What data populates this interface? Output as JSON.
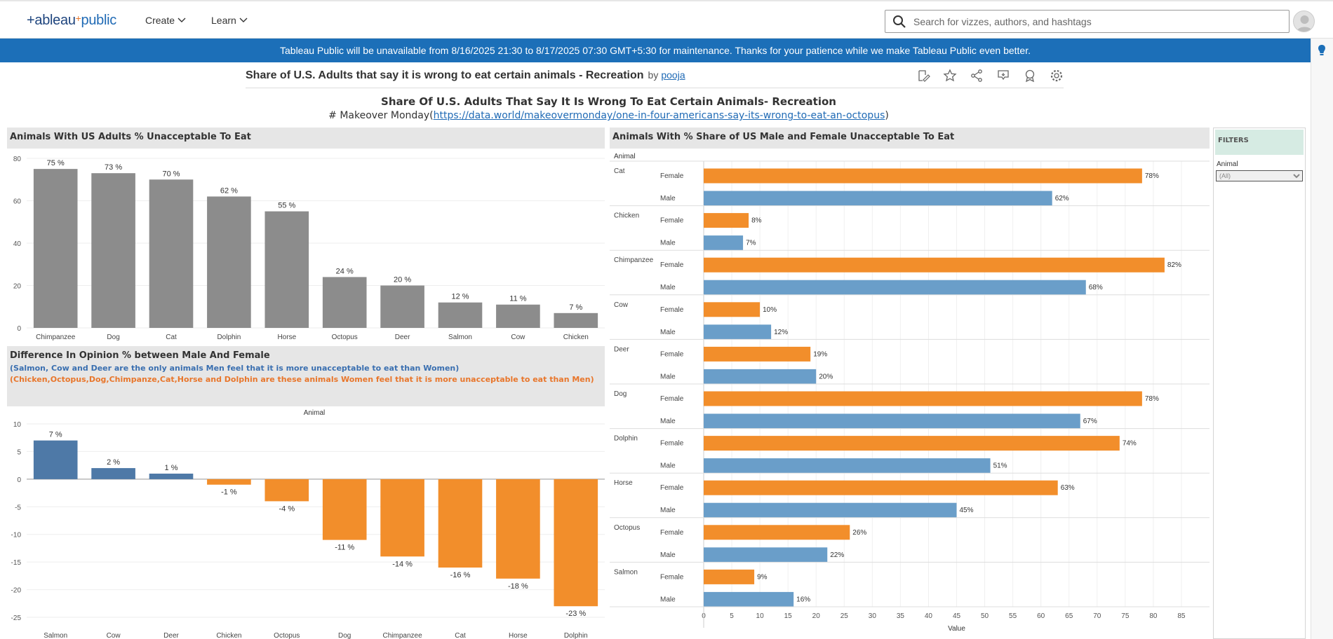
{
  "header": {
    "logo_main": "+ableau",
    "logo_plus": "+",
    "logo_sub": "public",
    "nav": [
      "Create",
      "Learn"
    ],
    "search_placeholder": "Search for vizzes, authors, and hashtags"
  },
  "banner": "Tableau Public will be unavailable from 8/16/2025 21:30 to 8/17/2025 07:30 GMT+5:30 for maintenance. Thanks for your patience while we make Tableau Public even better.",
  "viz": {
    "title": "Share of U.S. Adults that say it is wrong to eat certain animals - Recreation",
    "by": "by",
    "author": "pooja",
    "toolbar_icons": [
      "edit-icon",
      "star-icon",
      "share-icon",
      "comment-icon",
      "badge-icon",
      "settings-icon"
    ]
  },
  "dashboard": {
    "title": "Share Of U.S. Adults That Say It Is Wrong To Eat Certain Animals- Recreation",
    "subtitle_prefix": "# Makeover Monday(",
    "subtitle_link": "https://data.world/makeovermonday/one-in-four-americans-say-its-wrong-to-eat-an-octopus",
    "subtitle_suffix": ")"
  },
  "filters": {
    "title": "FILTERS",
    "label": "Animal",
    "selected": "(All)"
  },
  "colors": {
    "gray_bar": "#8c8c8c",
    "blue_bar": "#4e79a7",
    "male_bar": "#6a9ec9",
    "orange_bar": "#f28e2b",
    "banner": "#1c6fb8"
  },
  "chart_data": [
    {
      "type": "bar",
      "title": "Animals With US Adults % Unacceptable To Eat",
      "categories": [
        "Chimpanzee",
        "Dog",
        "Cat",
        "Dolphin",
        "Horse",
        "Octopus",
        "Deer",
        "Salmon",
        "Cow",
        "Chicken"
      ],
      "values": [
        75,
        73,
        70,
        62,
        55,
        24,
        20,
        12,
        11,
        7
      ],
      "labels": [
        "75 %",
        "73 %",
        "70 %",
        "62 %",
        "55 %",
        "24 %",
        "20 %",
        "12 %",
        "11 %",
        "7 %"
      ],
      "ylim": [
        0,
        80
      ],
      "yticks": [
        0,
        20,
        40,
        60,
        80
      ]
    },
    {
      "type": "bar",
      "title": "Difference In Opinion % between Male And Female",
      "note_blue": "(Salmon, Cow and Deer are the only  animals  Men feel that it  is more unacceptable to eat than Women)",
      "note_orange": "(Chicken,Octopus,Dog,Chimpanze,Cat,Horse and Dolphin are these animals Women feel that it is more unacceptable to eat than Men)",
      "xlabel": "Animal",
      "categories": [
        "Salmon",
        "Cow",
        "Deer",
        "Chicken",
        "Octopus",
        "Dog",
        "Chimpanzee",
        "Cat",
        "Horse",
        "Dolphin"
      ],
      "values": [
        7,
        2,
        1,
        -1,
        -4,
        -11,
        -14,
        -16,
        -18,
        -23
      ],
      "labels": [
        "7 %",
        "2 %",
        "1 %",
        "-1 %",
        "-4 %",
        "-11 %",
        "-14 %",
        "-16 %",
        "-18 %",
        "-23 %"
      ],
      "ylim": [
        -25,
        10
      ],
      "yticks": [
        10,
        5,
        0,
        -5,
        -10,
        -15,
        -20,
        -25
      ]
    },
    {
      "type": "bar",
      "orientation": "horizontal",
      "title": "Animals With % Share of US Male and Female Unacceptable To Eat",
      "row_header": "Animal",
      "xlabel": "Value",
      "xlim": [
        0,
        90
      ],
      "xticks": [
        0,
        5,
        10,
        15,
        20,
        25,
        30,
        35,
        40,
        45,
        50,
        55,
        60,
        65,
        70,
        75,
        80,
        85
      ],
      "series": [
        {
          "name": "Female"
        },
        {
          "name": "Male"
        }
      ],
      "animals": [
        {
          "name": "Cat",
          "female": 78,
          "male": 62
        },
        {
          "name": "Chicken",
          "female": 8,
          "male": 7
        },
        {
          "name": "Chimpanzee",
          "female": 82,
          "male": 68
        },
        {
          "name": "Cow",
          "female": 10,
          "male": 12
        },
        {
          "name": "Deer",
          "female": 19,
          "male": 20
        },
        {
          "name": "Dog",
          "female": 78,
          "male": 67
        },
        {
          "name": "Dolphin",
          "female": 74,
          "male": 51
        },
        {
          "name": "Horse",
          "female": 63,
          "male": 45
        },
        {
          "name": "Octopus",
          "female": 26,
          "male": 22
        },
        {
          "name": "Salmon",
          "female": 9,
          "male": 16
        }
      ]
    }
  ]
}
